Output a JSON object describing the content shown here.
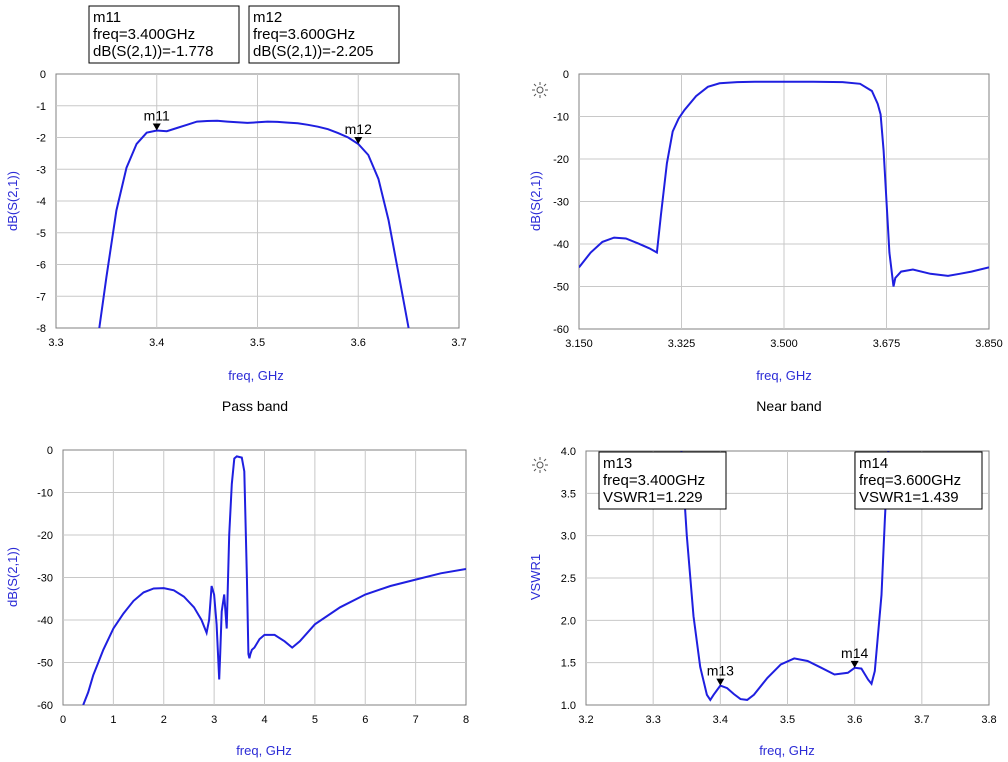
{
  "chart_data": [
    {
      "type": "line",
      "title": "",
      "xlabel": "freq, GHz",
      "ylabel": "dB(S(2,1))",
      "xlim": [
        3.3,
        3.7
      ],
      "ylim": [
        -8,
        0
      ],
      "x_ticks": [
        "3.3",
        "3.4",
        "3.5",
        "3.6",
        "3.7"
      ],
      "y_ticks": [
        "0",
        "-1",
        "-2",
        "-3",
        "-4",
        "-5",
        "-6",
        "-7",
        "-8"
      ],
      "series": [
        {
          "color": "#1f1fe0",
          "x": [
            3.343,
            3.35,
            3.36,
            3.37,
            3.38,
            3.39,
            3.4,
            3.41,
            3.42,
            3.43,
            3.44,
            3.45,
            3.46,
            3.47,
            3.48,
            3.49,
            3.5,
            3.51,
            3.52,
            3.53,
            3.54,
            3.55,
            3.56,
            3.57,
            3.58,
            3.59,
            3.6,
            3.61,
            3.62,
            3.63,
            3.64,
            3.65
          ],
          "y": [
            -8.0,
            -6.4,
            -4.3,
            -2.95,
            -2.2,
            -1.85,
            -1.778,
            -1.8,
            -1.7,
            -1.6,
            -1.5,
            -1.48,
            -1.47,
            -1.5,
            -1.52,
            -1.54,
            -1.52,
            -1.5,
            -1.51,
            -1.53,
            -1.55,
            -1.6,
            -1.66,
            -1.74,
            -1.86,
            -2.0,
            -2.205,
            -2.55,
            -3.3,
            -4.6,
            -6.3,
            -8.0
          ]
        }
      ],
      "markers": [
        {
          "name": "m11",
          "x": 3.4,
          "y": -1.778,
          "text": [
            "m11",
            "freq=3.400GHz",
            "dB(S(2,1))=-1.778"
          ]
        },
        {
          "name": "m12",
          "x": 3.6,
          "y": -2.205,
          "text": [
            "m12",
            "freq=3.600GHz",
            "dB(S(2,1))=-2.205"
          ]
        }
      ]
    },
    {
      "type": "line",
      "title": "",
      "xlabel": "freq, GHz",
      "ylabel": "dB(S(2,1))",
      "xlim": [
        3.15,
        3.85
      ],
      "ylim": [
        -60,
        0
      ],
      "x_ticks": [
        "3.150",
        "3.325",
        "3.500",
        "3.675",
        "3.850"
      ],
      "y_ticks": [
        "0",
        "-10",
        "-20",
        "-30",
        "-40",
        "-50",
        "-60"
      ],
      "series": [
        {
          "color": "#1f1fe0",
          "x": [
            3.15,
            3.17,
            3.19,
            3.21,
            3.23,
            3.25,
            3.27,
            3.283,
            3.29,
            3.3,
            3.31,
            3.32,
            3.33,
            3.35,
            3.37,
            3.39,
            3.42,
            3.45,
            3.5,
            3.55,
            3.6,
            3.63,
            3.65,
            3.66,
            3.665,
            3.67,
            3.675,
            3.68,
            3.687,
            3.69,
            3.7,
            3.72,
            3.75,
            3.78,
            3.8,
            3.82,
            3.85
          ],
          "y": [
            -45.5,
            -42,
            -39.5,
            -38.5,
            -38.7,
            -39.8,
            -41,
            -42,
            -33,
            -21,
            -13.5,
            -10.5,
            -8.5,
            -5.2,
            -3,
            -2.2,
            -1.9,
            -1.8,
            -1.8,
            -1.8,
            -1.9,
            -2.3,
            -4,
            -7,
            -9.5,
            -18,
            -30,
            -42,
            -50,
            -48,
            -46.5,
            -46,
            -47,
            -47.5,
            -47,
            -46.5,
            -45.5
          ]
        }
      ]
    },
    {
      "type": "line",
      "title": "Pass band",
      "xlabel": "freq, GHz",
      "ylabel": "dB(S(2,1))",
      "xlim": [
        0,
        8
      ],
      "ylim": [
        -60,
        0
      ],
      "x_ticks": [
        "0",
        "1",
        "2",
        "3",
        "4",
        "5",
        "6",
        "7",
        "8"
      ],
      "y_ticks": [
        "0",
        "-10",
        "-20",
        "-30",
        "-40",
        "-50",
        "-60"
      ],
      "series": [
        {
          "color": "#1f1fe0",
          "x": [
            0.4,
            0.5,
            0.6,
            0.7,
            0.8,
            1.0,
            1.2,
            1.4,
            1.6,
            1.8,
            2.0,
            2.2,
            2.4,
            2.6,
            2.75,
            2.85,
            2.9,
            2.95,
            3.0,
            3.05,
            3.1,
            3.12,
            3.15,
            3.2,
            3.25,
            3.3,
            3.35,
            3.4,
            3.45,
            3.55,
            3.6,
            3.65,
            3.68,
            3.7,
            3.72,
            3.75,
            3.8,
            3.9,
            4.0,
            4.2,
            4.4,
            4.55,
            4.7,
            5.0,
            5.5,
            6.0,
            6.5,
            7.0,
            7.5,
            8.0
          ],
          "y": [
            -60,
            -57,
            -53,
            -50,
            -47,
            -42,
            -38.5,
            -35.5,
            -33.5,
            -32.6,
            -32.5,
            -33,
            -34.5,
            -37,
            -40,
            -43,
            -40,
            -32,
            -34,
            -41,
            -54,
            -48,
            -38,
            -34,
            -42,
            -20,
            -8,
            -2,
            -1.5,
            -1.8,
            -5,
            -30,
            -48,
            -49,
            -48,
            -47,
            -46.5,
            -44.5,
            -43.5,
            -43.5,
            -45,
            -46.5,
            -45,
            -41,
            -37,
            -34,
            -32,
            -30.5,
            -29,
            -28
          ]
        }
      ]
    },
    {
      "type": "line",
      "title": "Near band",
      "xlabel": "freq, GHz",
      "ylabel": "VSWR1",
      "xlim": [
        3.2,
        3.8
      ],
      "ylim": [
        1.0,
        4.0
      ],
      "x_ticks": [
        "3.2",
        "3.3",
        "3.4",
        "3.5",
        "3.6",
        "3.7",
        "3.8"
      ],
      "y_ticks": [
        "4.0",
        "3.5",
        "3.0",
        "2.5",
        "2.0",
        "1.5",
        "1.0"
      ],
      "series": [
        {
          "color": "#1f1fe0",
          "x": [
            3.342,
            3.35,
            3.36,
            3.37,
            3.38,
            3.385,
            3.39,
            3.4,
            3.41,
            3.42,
            3.43,
            3.44,
            3.45,
            3.47,
            3.49,
            3.51,
            3.53,
            3.55,
            3.57,
            3.59,
            3.6,
            3.61,
            3.62,
            3.625,
            3.63,
            3.64,
            3.645,
            3.65
          ],
          "y": [
            4.0,
            3.0,
            2.05,
            1.45,
            1.12,
            1.06,
            1.12,
            1.229,
            1.2,
            1.13,
            1.07,
            1.06,
            1.12,
            1.32,
            1.48,
            1.55,
            1.52,
            1.44,
            1.36,
            1.38,
            1.439,
            1.43,
            1.3,
            1.25,
            1.4,
            2.3,
            3.2,
            4.0
          ]
        }
      ],
      "markers": [
        {
          "name": "m13",
          "x": 3.4,
          "y": 1.229,
          "text": [
            "m13",
            "freq=3.400GHz",
            "VSWR1=1.229"
          ]
        },
        {
          "name": "m14",
          "x": 3.6,
          "y": 1.439,
          "text": [
            "m14",
            "freq=3.600GHz",
            "VSWR1=1.439"
          ]
        }
      ]
    }
  ]
}
